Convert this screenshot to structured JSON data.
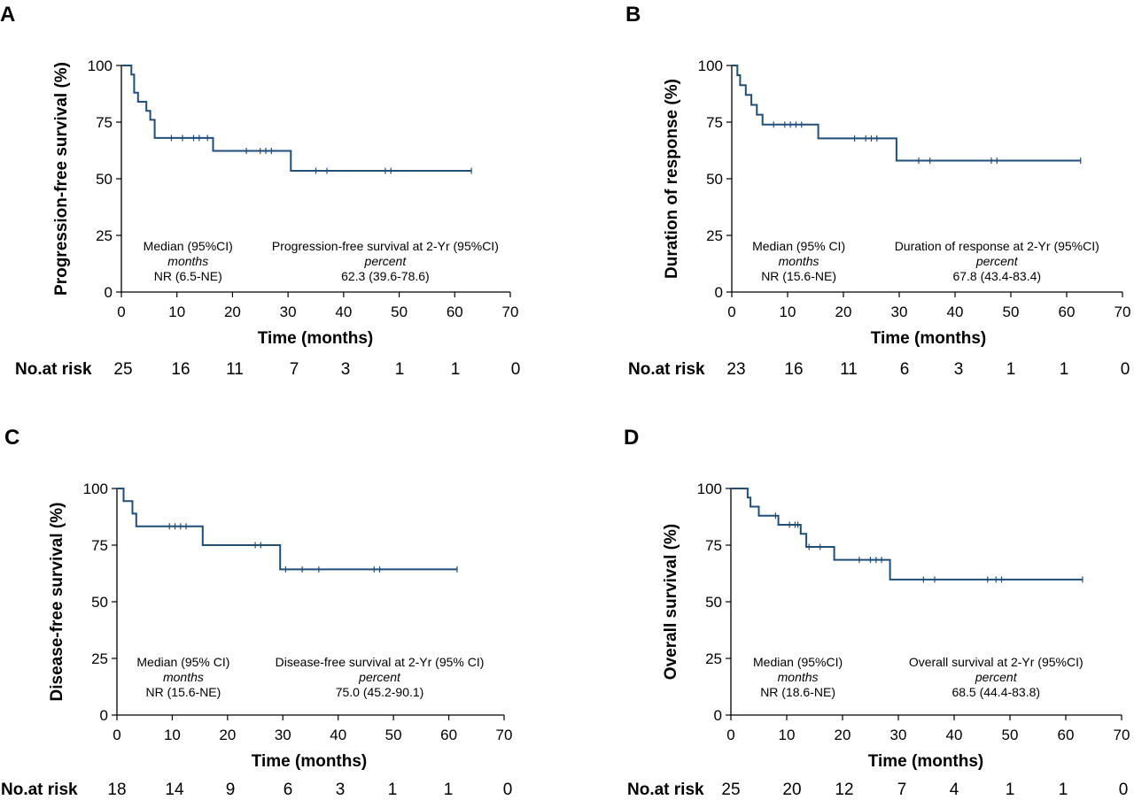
{
  "style": {
    "line_color": "#1f4e79",
    "axis_color": "#000000"
  },
  "chart_data": [
    {
      "type": "line",
      "panel_label": "A",
      "ylabel": "Progression-free survival (%)",
      "xlabel": "Time (months)",
      "xlim": [
        0,
        70
      ],
      "ylim": [
        0,
        100
      ],
      "xticks": [
        "0",
        "10",
        "20",
        "30",
        "40",
        "50",
        "60",
        "70"
      ],
      "yticks": [
        "0",
        "25",
        "50",
        "75",
        "100"
      ],
      "annotation_left": [
        "Median (95%CI)",
        "months",
        "NR (6.5-NE)"
      ],
      "annotation_right": [
        "Progression-free survival at 2-Yr (95%CI)",
        "percent",
        "62.3 (39.6-78.6)"
      ],
      "risk_label": "No.at risk",
      "risk_counts": [
        "25",
        "16",
        "11",
        "7",
        "3",
        "1",
        "1",
        "0"
      ],
      "series": [
        {
          "name": "Progression-free survival",
          "x": [
            0,
            1.8,
            1.8,
            2.3,
            2.3,
            3,
            3,
            4.5,
            4.5,
            5.2,
            5.2,
            6,
            6,
            16.5,
            16.5,
            30.5,
            30.5,
            63
          ],
          "y": [
            100,
            100,
            96,
            96,
            88,
            88,
            84,
            84,
            80,
            80,
            76,
            76,
            68,
            68,
            62.3,
            62.3,
            53.5,
            53.5
          ],
          "censors_x": [
            9,
            11,
            13,
            14,
            15.5,
            22.5,
            25,
            26,
            27,
            35,
            37,
            47.5,
            48.5,
            63
          ]
        }
      ]
    },
    {
      "type": "line",
      "panel_label": "B",
      "ylabel": "Duration of response (%)",
      "xlabel": "Time (months)",
      "xlim": [
        0,
        70
      ],
      "ylim": [
        0,
        100
      ],
      "xticks": [
        "0",
        "10",
        "20",
        "30",
        "40",
        "50",
        "60",
        "70"
      ],
      "yticks": [
        "0",
        "25",
        "50",
        "75",
        "100"
      ],
      "annotation_left": [
        "Median (95% CI)",
        "months",
        "NR (15.6-NE)"
      ],
      "annotation_right": [
        "Duration of response at 2-Yr (95%CI)",
        "percent",
        "67.8 (43.4-83.4)"
      ],
      "risk_label": "No.at risk",
      "risk_counts": [
        "23",
        "16",
        "11",
        "6",
        "3",
        "1",
        "1",
        "0"
      ],
      "series": [
        {
          "name": "Duration of response",
          "x": [
            0,
            1,
            1,
            1.5,
            1.5,
            2.5,
            2.5,
            3.5,
            3.5,
            4.5,
            4.5,
            5.5,
            5.5,
            15.5,
            15.5,
            29.5,
            29.5,
            62.5
          ],
          "y": [
            100,
            100,
            95.7,
            95.7,
            91.3,
            91.3,
            87,
            87,
            82.6,
            82.6,
            78.3,
            78.3,
            73.9,
            73.9,
            67.8,
            67.8,
            58,
            58
          ],
          "censors_x": [
            7.5,
            9.5,
            10.5,
            11.5,
            12.5,
            22,
            24,
            25,
            26,
            33.5,
            35.5,
            46.5,
            47.5,
            62.5
          ]
        }
      ]
    },
    {
      "type": "line",
      "panel_label": "C",
      "ylabel": "Disease-free survival (%)",
      "xlabel": "Time (months)",
      "xlim": [
        0,
        70
      ],
      "ylim": [
        0,
        100
      ],
      "xticks": [
        "0",
        "10",
        "20",
        "30",
        "40",
        "50",
        "60",
        "70"
      ],
      "yticks": [
        "0",
        "25",
        "50",
        "75",
        "100"
      ],
      "annotation_left": [
        "Median (95% CI)",
        "months",
        "NR (15.6-NE)"
      ],
      "annotation_right": [
        "Disease-free survival at 2-Yr (95% CI)",
        "percent",
        "75.0 (45.2-90.1)"
      ],
      "risk_label": "No.at risk",
      "risk_counts": [
        "18",
        "14",
        "9",
        "6",
        "3",
        "1",
        "1",
        "0"
      ],
      "series": [
        {
          "name": "Disease-free survival",
          "x": [
            0,
            1.2,
            1.2,
            2.8,
            2.8,
            3.5,
            3.5,
            15.5,
            15.5,
            29.5,
            29.5,
            61.5
          ],
          "y": [
            100,
            100,
            94.4,
            94.4,
            88.9,
            88.9,
            83.3,
            83.3,
            75,
            75,
            64.3,
            64.3
          ],
          "censors_x": [
            9.5,
            10.5,
            11.5,
            12.5,
            25,
            26,
            30.5,
            33.5,
            36.5,
            46.5,
            47.5,
            61.5
          ]
        }
      ]
    },
    {
      "type": "line",
      "panel_label": "D",
      "ylabel": "Overall survival (%)",
      "xlabel": "Time (months)",
      "xlim": [
        0,
        70
      ],
      "ylim": [
        0,
        100
      ],
      "xticks": [
        "0",
        "10",
        "20",
        "30",
        "40",
        "50",
        "60",
        "70"
      ],
      "yticks": [
        "0",
        "25",
        "50",
        "75",
        "100"
      ],
      "annotation_left": [
        "Median (95%CI)",
        "months",
        "NR (18.6-NE)"
      ],
      "annotation_right": [
        "Overall survival at 2-Yr (95%CI)",
        "percent",
        "68.5 (44.4-83.8)"
      ],
      "risk_label": "No.at risk",
      "risk_counts": [
        "25",
        "20",
        "12",
        "7",
        "4",
        "1",
        "1",
        "0"
      ],
      "series": [
        {
          "name": "Overall survival",
          "x": [
            0,
            3,
            3,
            3.5,
            3.5,
            5,
            5,
            8.5,
            8.5,
            12.5,
            12.5,
            13.5,
            13.5,
            18.5,
            18.5,
            28.5,
            28.5,
            63
          ],
          "y": [
            100,
            100,
            96,
            96,
            92,
            92,
            88,
            88,
            84,
            84,
            80,
            80,
            74.2,
            74.2,
            68.5,
            68.5,
            59.8,
            59.8
          ],
          "censors_x": [
            8,
            10.5,
            11.5,
            12,
            14,
            16,
            23,
            25,
            26,
            27,
            34.5,
            36.5,
            46,
            47.5,
            48.5,
            63
          ]
        }
      ]
    }
  ]
}
